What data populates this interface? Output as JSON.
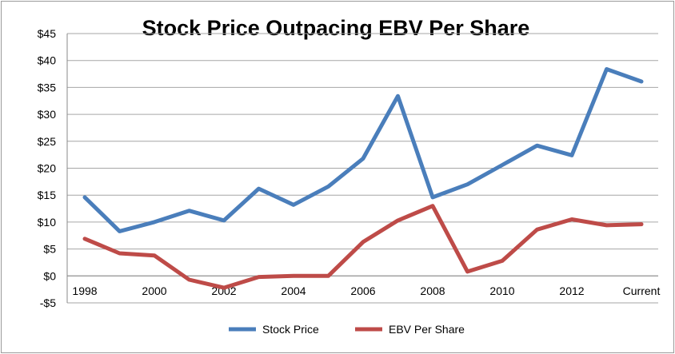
{
  "chart_data": {
    "type": "line",
    "title": "Stock Price Outpacing EBV Per Share",
    "xlabel": "",
    "ylabel": "",
    "ylim": [
      -5,
      45
    ],
    "yticks": [
      -5,
      0,
      5,
      10,
      15,
      20,
      25,
      30,
      35,
      40,
      45
    ],
    "ytick_labels": [
      "-$5",
      "$0",
      "$5",
      "$10",
      "$15",
      "$20",
      "$25",
      "$30",
      "$35",
      "$40",
      "$45"
    ],
    "categories": [
      "1998",
      "1999",
      "2000",
      "2001",
      "2002",
      "2003",
      "2004",
      "2005",
      "2006",
      "2007",
      "2008",
      "2009",
      "2010",
      "2011",
      "2012",
      "2013",
      "Current"
    ],
    "xtick_labels": [
      "1998",
      "",
      "2000",
      "",
      "2002",
      "",
      "2004",
      "",
      "2006",
      "",
      "2008",
      "",
      "2010",
      "",
      "2012",
      "",
      "Current"
    ],
    "grid": true,
    "legend_position": "bottom",
    "series": [
      {
        "name": "Stock Price",
        "color": "#4a7ebb",
        "values": [
          14.6,
          8.3,
          10.0,
          12.1,
          10.3,
          16.2,
          13.2,
          16.6,
          21.8,
          33.4,
          14.6,
          17.0,
          20.6,
          24.2,
          22.4,
          38.4,
          36.1
        ]
      },
      {
        "name": "EBV Per Share",
        "color": "#be4b48",
        "values": [
          6.9,
          4.2,
          3.8,
          -0.7,
          -2.2,
          -0.2,
          0.0,
          0.0,
          6.3,
          10.3,
          13.0,
          0.8,
          2.8,
          8.6,
          10.5,
          9.4,
          9.6
        ]
      }
    ]
  }
}
